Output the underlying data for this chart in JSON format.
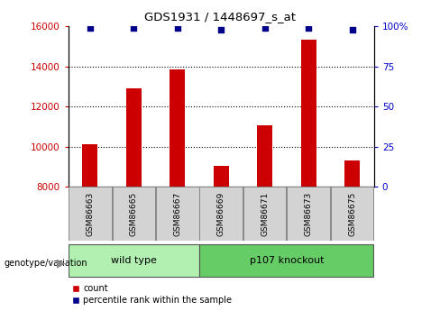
{
  "title": "GDS1931 / 1448697_s_at",
  "samples": [
    "GSM86663",
    "GSM86665",
    "GSM86667",
    "GSM86669",
    "GSM86671",
    "GSM86673",
    "GSM86675"
  ],
  "counts": [
    10100,
    12900,
    13850,
    9050,
    11050,
    15350,
    9300
  ],
  "percentiles": [
    99,
    99,
    99,
    98,
    99,
    99,
    98
  ],
  "ylim_left": [
    8000,
    16000
  ],
  "ylim_right": [
    0,
    100
  ],
  "yticks_left": [
    8000,
    10000,
    12000,
    14000,
    16000
  ],
  "yticks_right": [
    0,
    25,
    50,
    75,
    100
  ],
  "groups": [
    {
      "label": "wild type",
      "n": 3,
      "color": "#b2f0b2"
    },
    {
      "label": "p107 knockout",
      "n": 4,
      "color": "#66cc66"
    }
  ],
  "bar_color": "#cc0000",
  "dot_color": "#00008b",
  "bar_width": 0.35,
  "background_color": "#ffffff",
  "tick_label_color_left": "#cc0000",
  "tick_label_color_right": "#0000cc",
  "grid_color": "#000000",
  "genotype_label": "genotype/variation",
  "legend_count_label": "count",
  "legend_percentile_label": "percentile rank within the sample",
  "sample_box_color": "#d3d3d3",
  "grid_yticks": [
    10000,
    12000,
    14000
  ],
  "right_tick_labels": [
    "0",
    "25",
    "50",
    "75",
    "100%"
  ]
}
